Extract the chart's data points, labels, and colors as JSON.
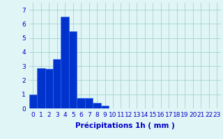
{
  "values": [
    1.0,
    2.85,
    2.8,
    3.5,
    6.5,
    5.5,
    0.75,
    0.75,
    0.4,
    0.2,
    0,
    0,
    0,
    0,
    0,
    0,
    0,
    0,
    0,
    0,
    0,
    0,
    0,
    0
  ],
  "categories": [
    0,
    1,
    2,
    3,
    4,
    5,
    6,
    7,
    8,
    9,
    10,
    11,
    12,
    13,
    14,
    15,
    16,
    17,
    18,
    19,
    20,
    21,
    22,
    23
  ],
  "bar_color": "#0033cc",
  "bar_edge_color": "#3366ff",
  "background_color": "#e0f5f5",
  "grid_color": "#99cccc",
  "text_color": "#0000cc",
  "xlabel": "Précipitations 1h ( mm )",
  "ylim": [
    0,
    7.5
  ],
  "xlim": [
    -0.5,
    23.5
  ],
  "yticks": [
    0,
    1,
    2,
    3,
    4,
    5,
    6,
    7
  ],
  "xticks": [
    0,
    1,
    2,
    3,
    4,
    5,
    6,
    7,
    8,
    9,
    10,
    11,
    12,
    13,
    14,
    15,
    16,
    17,
    18,
    19,
    20,
    21,
    22,
    23
  ],
  "tick_fontsize": 6.5,
  "xlabel_fontsize": 7.5
}
